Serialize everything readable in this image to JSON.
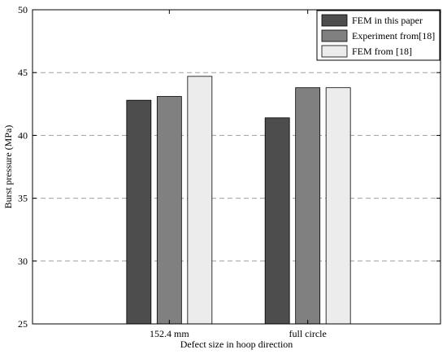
{
  "chart_data": {
    "type": "bar",
    "title": "",
    "xlabel": "Defect size in hoop direction",
    "ylabel": "Burst pressure (MPa)",
    "categories": [
      "152.4 mm",
      "full circle"
    ],
    "series": [
      {
        "name": "FEM in this paper",
        "values": [
          42.8,
          41.4
        ],
        "color": "#4d4d4d"
      },
      {
        "name": "Experiment from[18]",
        "values": [
          43.1,
          43.8
        ],
        "color": "#808080"
      },
      {
        "name": "FEM from [18]",
        "values": [
          44.7,
          43.8
        ],
        "color": "#ececec"
      }
    ],
    "ylim": [
      25,
      50
    ],
    "yticks": [
      25,
      30,
      35,
      40,
      45,
      50
    ],
    "ytick_labels": [
      "25",
      "30",
      "35",
      "40",
      "45",
      "50"
    ],
    "grid": "horizontal-dashed",
    "legend": "top-right"
  }
}
